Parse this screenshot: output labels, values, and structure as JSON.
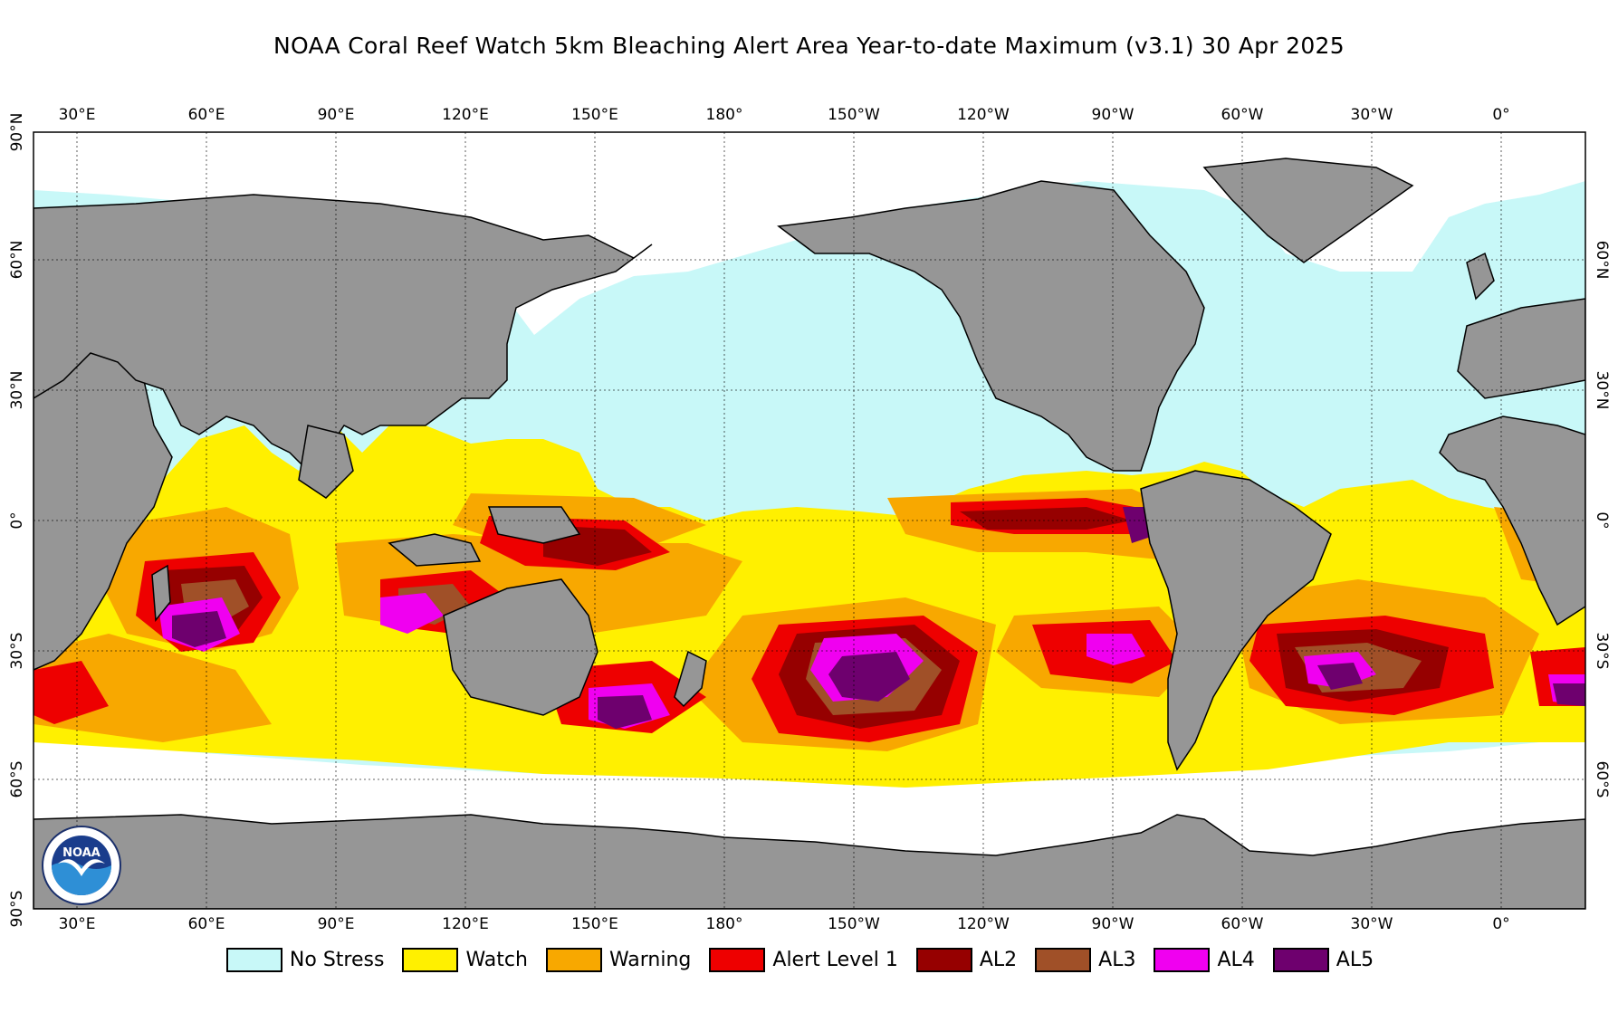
{
  "title": "NOAA Coral Reef Watch 5km Bleaching Alert Area Year-to-date Maximum  (v3.1)   30 Apr 2025",
  "map": {
    "lon_labels": [
      "30°E",
      "60°E",
      "90°E",
      "120°E",
      "150°E",
      "180°",
      "150°W",
      "120°W",
      "90°W",
      "60°W",
      "30°W",
      "0°"
    ],
    "lat_labels_left": [
      "90°N",
      "60°N",
      "30°N",
      "0°",
      "30°S",
      "60°S",
      "90°S"
    ],
    "lat_labels_right": [
      "60°N",
      "30°N",
      "0°",
      "30°S",
      "60°S"
    ],
    "colors": {
      "land": "#969696",
      "no_stress": "#c8f8f8",
      "watch": "#fff000",
      "warning": "#f8a800",
      "alert1": "#ee0000",
      "al2": "#960000",
      "al3": "#a05028",
      "al4": "#f000f0",
      "al5": "#6e006e",
      "no_data": "#ffffff"
    }
  },
  "legend": [
    {
      "label": "No Stress",
      "color": "#c8f8f8"
    },
    {
      "label": "Watch",
      "color": "#fff000"
    },
    {
      "label": "Warning",
      "color": "#f8a800"
    },
    {
      "label": "Alert Level 1",
      "color": "#ee0000"
    },
    {
      "label": "AL2",
      "color": "#960000"
    },
    {
      "label": "AL3",
      "color": "#a05028"
    },
    {
      "label": "AL4",
      "color": "#f000f0"
    },
    {
      "label": "AL5",
      "color": "#6e006e"
    }
  ],
  "logo": {
    "text": "NOAA"
  }
}
